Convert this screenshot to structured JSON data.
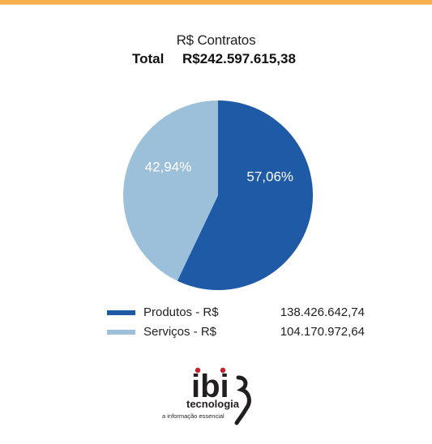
{
  "chart_data": {
    "type": "pie",
    "title": "R$ Contratos",
    "total_label": "Total",
    "total_value": "R$242.597.615,38",
    "slices": [
      {
        "name": "Produtos - R$",
        "value": 138426642.74,
        "value_text": "138.426.642,74",
        "percent": 57.06,
        "percent_text": "57,06%",
        "color": "#1f5aa6"
      },
      {
        "name": "Serviços - R$",
        "value": 104170972.64,
        "value_text": "104.170.972,64",
        "percent": 42.94,
        "percent_text": "42,94%",
        "color": "#9dc0da"
      }
    ]
  },
  "colors": {
    "top_bar": "#f7ae4c",
    "logo_red": "#c8202a",
    "logo_dark": "#231f20"
  },
  "logo": {
    "tagline": "a informação essencial",
    "wordmark": "tecnologia",
    "brand_letters": "ibi"
  }
}
